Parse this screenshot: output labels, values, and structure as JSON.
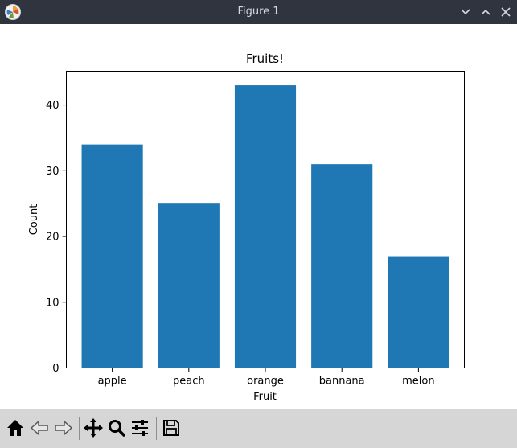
{
  "window": {
    "title": "Figure 1"
  },
  "colors": {
    "bar": "#1f77b4",
    "titlebar": "#2f343f",
    "toolbar": "#d6d6d6"
  },
  "toolbar": {
    "buttons": [
      {
        "name": "home-icon"
      },
      {
        "name": "back-arrow-icon"
      },
      {
        "name": "forward-arrow-icon"
      },
      {
        "name": "pan-move-icon"
      },
      {
        "name": "zoom-magnifier-icon"
      },
      {
        "name": "subplots-config-icon"
      },
      {
        "name": "save-floppy-icon"
      }
    ]
  },
  "chart_data": {
    "type": "bar",
    "title": "Fruits!",
    "xlabel": "Fruit",
    "ylabel": "Count",
    "categories": [
      "apple",
      "peach",
      "orange",
      "bannana",
      "melon"
    ],
    "values": [
      34,
      25,
      43,
      31,
      17
    ],
    "ylim": [
      0,
      45.15
    ],
    "yticks": [
      0,
      10,
      20,
      30,
      40
    ],
    "grid": false,
    "bar_color": "#1f77b4"
  }
}
